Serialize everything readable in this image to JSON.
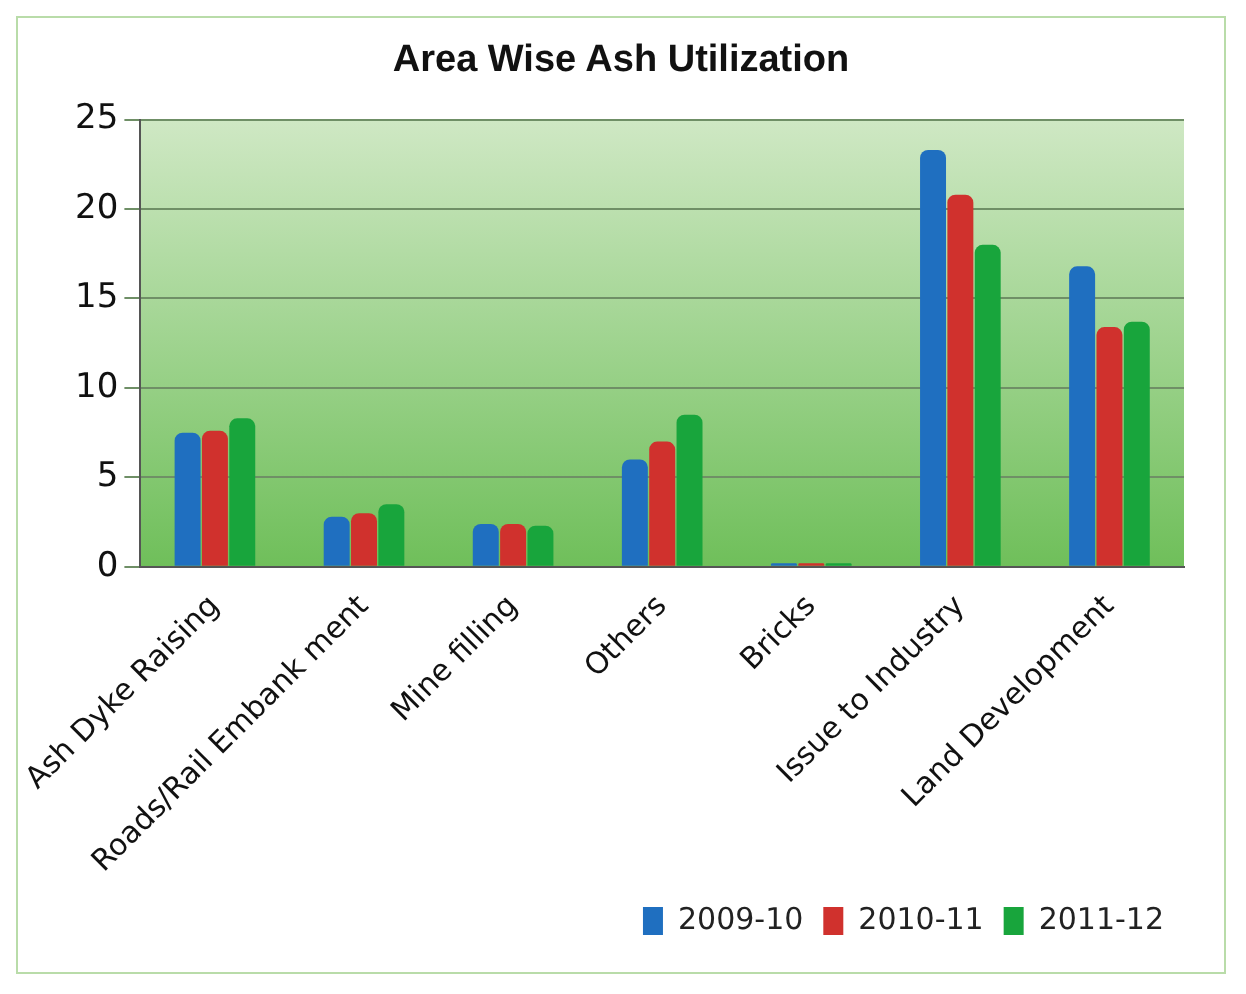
{
  "chart_data": {
    "type": "bar",
    "title": "Area Wise Ash Utilization",
    "categories": [
      "Ash Dyke Raising",
      "Roads/Rail Embank ment",
      "Mine filling",
      "Others",
      "Bricks",
      "Issue to Industry",
      "Land Development"
    ],
    "series": [
      {
        "name": "2009-10",
        "color": "#1f6fc0",
        "values": [
          7.5,
          2.8,
          2.4,
          6,
          0.2,
          23.3,
          16.8
        ]
      },
      {
        "name": "2010-11",
        "color": "#d0312d",
        "values": [
          7.6,
          3,
          2.4,
          7,
          0.2,
          20.8,
          13.4
        ]
      },
      {
        "name": "2011-12",
        "color": "#18a53c",
        "values": [
          8.3,
          3.5,
          2.3,
          8.5,
          0.2,
          18,
          13.7
        ]
      }
    ],
    "ylim": [
      0,
      25
    ],
    "yticks": [
      0,
      5,
      10,
      15,
      20,
      25
    ],
    "grid": "y",
    "legend": "bottom right"
  }
}
